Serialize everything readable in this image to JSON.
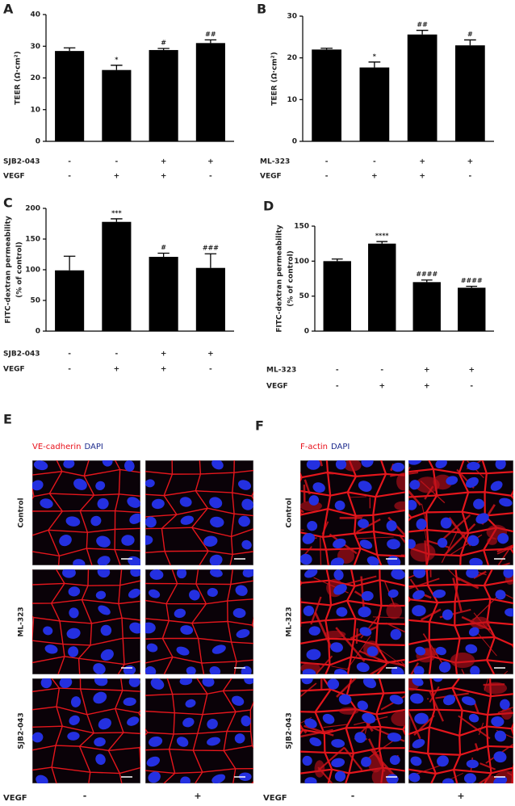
{
  "chart_data": [
    {
      "type": "bar",
      "label": "A",
      "ylabel": [
        "TEER (Ω·cm²)"
      ],
      "color": "#000000",
      "values": [
        28.5,
        22.5,
        28.8,
        31
      ],
      "errors": [
        1,
        1.5,
        0.5,
        1
      ],
      "significance": [
        null,
        "*",
        "#",
        "##"
      ],
      "ylim": [
        0,
        40
      ],
      "yticks": [
        0,
        10,
        20,
        30,
        40
      ],
      "conditions": [
        {
          "name": "SJB2-043",
          "values": [
            "-",
            "-",
            "+",
            "+"
          ]
        },
        {
          "name": "VEGF",
          "values": [
            "-",
            "+",
            "+",
            "-"
          ]
        }
      ]
    },
    {
      "type": "bar",
      "label": "B",
      "ylabel": [
        "TEER (Ω·cm²)"
      ],
      "color": "#000000",
      "values": [
        22,
        17.7,
        25.6,
        23
      ],
      "errors": [
        0.3,
        1.3,
        1,
        1.3
      ],
      "significance": [
        null,
        "*",
        "##",
        "#"
      ],
      "ylim": [
        0,
        30
      ],
      "yticks": [
        0,
        10,
        20,
        30
      ],
      "conditions": [
        {
          "name": "ML-323",
          "values": [
            "-",
            "-",
            "+",
            "+"
          ]
        },
        {
          "name": "VEGF",
          "values": [
            "-",
            "+",
            "+",
            "-"
          ]
        }
      ]
    },
    {
      "type": "bar",
      "label": "C",
      "ylabel": [
        "FITC-dextran permeability",
        "(% of control)"
      ],
      "color": "#000000",
      "values": [
        99,
        178,
        121,
        103
      ],
      "errors": [
        23,
        5,
        6,
        23
      ],
      "significance": [
        null,
        "***",
        "#",
        "###"
      ],
      "ylim": [
        0,
        200
      ],
      "yticks": [
        0,
        50,
        100,
        150,
        200
      ],
      "conditions": [
        {
          "name": "SJB2-043",
          "values": [
            "-",
            "-",
            "+",
            "+"
          ]
        },
        {
          "name": "VEGF",
          "values": [
            "-",
            "+",
            "+",
            "-"
          ]
        }
      ]
    },
    {
      "type": "bar",
      "label": "D",
      "ylabel": [
        "FITC-dextran permeability",
        "(% of control)"
      ],
      "color": "#000000",
      "values": [
        100,
        125,
        70,
        62
      ],
      "errors": [
        3,
        3,
        3,
        2
      ],
      "significance": [
        null,
        "****",
        "####",
        "####"
      ],
      "ylim": [
        0,
        150
      ],
      "yticks": [
        0,
        50,
        100,
        150
      ],
      "conditions": [
        {
          "name": "ML-323",
          "values": [
            "-",
            "-",
            "+",
            "+"
          ]
        },
        {
          "name": "VEGF",
          "values": [
            "-",
            "+",
            "+",
            "-"
          ]
        }
      ]
    }
  ],
  "image_panels": [
    {
      "label": "E",
      "stains": [
        {
          "text": "VE-cadherin",
          "color": "#e8101a"
        },
        {
          "text": "DAPI",
          "color": "#1c2a8c"
        }
      ],
      "rows": [
        "Control",
        "ML-323",
        "SJB2-043"
      ],
      "treatment": {
        "name": "VEGF",
        "conditions": [
          "-",
          "+"
        ]
      }
    },
    {
      "label": "F",
      "stains": [
        {
          "text": "F-actin",
          "color": "#e8101a"
        },
        {
          "text": "DAPI",
          "color": "#1c2a8c"
        }
      ],
      "rows": [
        "Control",
        "ML-323",
        "SJB2-043"
      ],
      "treatment": {
        "name": "VEGF",
        "conditions": [
          "-",
          "+"
        ]
      }
    }
  ]
}
